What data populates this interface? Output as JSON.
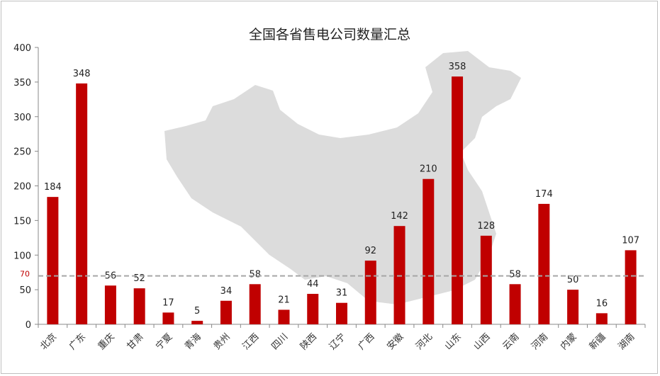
{
  "chart_data": {
    "type": "bar",
    "title": "全国各省售电公司数量汇总",
    "xlabel": "",
    "ylabel": "",
    "ylim": [
      0,
      400
    ],
    "yticks": [
      0,
      50,
      100,
      150,
      200,
      250,
      300,
      350,
      400
    ],
    "grid": false,
    "categories": [
      "北京",
      "广东",
      "重庆",
      "甘肃",
      "宁夏",
      "青海",
      "贵州",
      "江西",
      "四川",
      "陕西",
      "辽宁",
      "广西",
      "安徽",
      "河北",
      "山东",
      "山西",
      "云南",
      "河南",
      "内蒙",
      "新疆",
      "湖南"
    ],
    "values": [
      184,
      348,
      56,
      52,
      17,
      5,
      34,
      58,
      21,
      44,
      31,
      92,
      142,
      210,
      358,
      128,
      58,
      174,
      50,
      16,
      107
    ],
    "bar_color": "#c00000",
    "reference_line": {
      "value": 70,
      "label": "70",
      "color": "#a6a6a6",
      "label_color": "#c00000",
      "style": "dashed"
    },
    "background_image": "china-map-silhouette"
  }
}
